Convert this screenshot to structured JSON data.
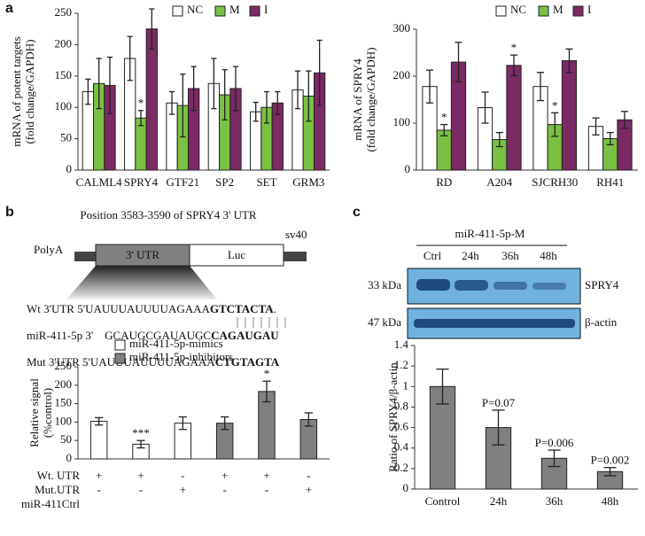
{
  "panel_labels": [
    "a",
    "b",
    "c"
  ],
  "chart_data": [
    {
      "type": "bar",
      "ylabel": [
        "mRNA of potent targets",
        "(fold change/GAPDH)"
      ],
      "categories": [
        "CALML4",
        "SPRY4",
        "GTF21",
        "SP2",
        "SET",
        "GRM3"
      ],
      "series": [
        {
          "name": "NC",
          "color": "#ffffff",
          "values": [
            125,
            178,
            107,
            138,
            93,
            128
          ],
          "errors": [
            20,
            35,
            18,
            40,
            15,
            30
          ]
        },
        {
          "name": "M",
          "color": "#7ac143",
          "values": [
            138,
            83,
            103,
            120,
            100,
            118
          ],
          "errors": [
            40,
            12,
            50,
            40,
            25,
            40
          ]
        },
        {
          "name": "I",
          "color": "#7b2a63",
          "values": [
            135,
            225,
            130,
            130,
            107,
            155
          ],
          "errors": [
            45,
            32,
            35,
            35,
            18,
            52
          ]
        }
      ],
      "ylim": [
        0,
        250
      ],
      "yticks": [
        0,
        50,
        100,
        150,
        200,
        250
      ],
      "legend": "top",
      "annotations": [
        {
          "text": "*",
          "category": "SPRY4",
          "series": "M"
        }
      ]
    },
    {
      "type": "bar",
      "ylabel": [
        "mRNA of SPRY4",
        "(fold change/GAPDH)"
      ],
      "categories": [
        "RD",
        "A204",
        "SJCRH30",
        "RH41"
      ],
      "series": [
        {
          "name": "NC",
          "color": "#ffffff",
          "values": [
            178,
            133,
            178,
            93
          ],
          "errors": [
            35,
            33,
            30,
            18
          ]
        },
        {
          "name": "M",
          "color": "#7ac143",
          "values": [
            85,
            65,
            97,
            67
          ],
          "errors": [
            12,
            15,
            25,
            13
          ]
        },
        {
          "name": "I",
          "color": "#7b2a63",
          "values": [
            230,
            223,
            233,
            107
          ],
          "errors": [
            42,
            22,
            25,
            18
          ]
        }
      ],
      "ylim": [
        0,
        300
      ],
      "yticks": [
        0,
        100,
        200,
        300
      ],
      "legend": "top",
      "annotations": [
        {
          "text": "*",
          "category": "RD",
          "series": "M"
        },
        {
          "text": "*",
          "category": "A204",
          "series": "I"
        },
        {
          "text": "*",
          "category": "SJCRH30",
          "series": "M"
        }
      ]
    },
    {
      "type": "bar",
      "ylabel": [
        "Relative signal",
        "(%control)"
      ],
      "categories": [
        null,
        null,
        null,
        null,
        null,
        null
      ],
      "series": [
        {
          "name": "miR-411-5p-mimics",
          "color": "#ffffff",
          "values": [
            102,
            40,
            97,
            null,
            null,
            null
          ],
          "errors": [
            10,
            10,
            17,
            null,
            null,
            null
          ]
        },
        {
          "name": "miR-411-5p-inhibitors",
          "color": "#808080",
          "values": [
            null,
            null,
            null,
            97,
            183,
            107
          ],
          "errors": [
            null,
            null,
            null,
            17,
            28,
            18
          ]
        }
      ],
      "ylim": [
        0,
        250
      ],
      "yticks": [
        0,
        50,
        100,
        150,
        200,
        250
      ],
      "legend": "top-left",
      "annotations": [
        {
          "text": "***",
          "series": "miR-411-5p-mimics",
          "index": 1
        },
        {
          "text": "*",
          "series": "miR-411-5p-inhibitors",
          "index": 4
        }
      ],
      "rows": [
        {
          "label": "Wt. UTR",
          "marks": [
            "+",
            "+",
            "-",
            "+",
            "+",
            "-"
          ]
        },
        {
          "label": "Mut.UTR",
          "marks": [
            "-",
            "-",
            "+",
            "-",
            "-",
            "+"
          ]
        },
        {
          "label": "miR-411Ctrl",
          "marks": []
        }
      ]
    },
    {
      "type": "bar",
      "ylabel": "Ratio of SPRY4/β-actin",
      "categories": [
        "Control",
        "24h",
        "36h",
        "48h"
      ],
      "values": [
        1,
        0.6,
        0.3,
        0.17
      ],
      "errors": [
        0.17,
        0.17,
        0.08,
        0.04
      ],
      "color": "#808080",
      "ylim": [
        0,
        1.4
      ],
      "yticks": [
        0,
        0.2,
        0.4,
        0.6,
        0.8,
        1,
        1.2,
        1.4
      ],
      "annotations": [
        {
          "text": "P=0.07",
          "category": "24h"
        },
        {
          "text": "P=0.006",
          "category": "36h"
        },
        {
          "text": "P=0.002",
          "category": "48h"
        }
      ]
    }
  ],
  "diagram": {
    "title": "Position  3583-3590 of SPRY4 3' UTR",
    "polya": "PolyA",
    "utr": "3' UTR",
    "luc": "Luc",
    "sv40": "sv40",
    "sequences": [
      {
        "plain": "Wt 3'UTR 5'UAUUUAUUUUAGAAA",
        "bold": "GTCTACTA",
        "end": "."
      },
      {
        "plain": "miR-411-5p 3'    GCAUGCGAUAUGC",
        "bold": "CAGAUGAU"
      },
      {
        "plain": "Mut 3'UTR 5'UAUUUAUUUUAGAAA",
        "bold": "CTGTAGTA"
      }
    ]
  },
  "blot": {
    "title": "miR-411-5p-M",
    "lanes": [
      "Ctrl",
      "24h",
      "36h",
      "48h"
    ],
    "sizes": [
      "33 kDa",
      "47 kDa"
    ],
    "proteins": [
      "SPRY4",
      "β-actin"
    ]
  }
}
